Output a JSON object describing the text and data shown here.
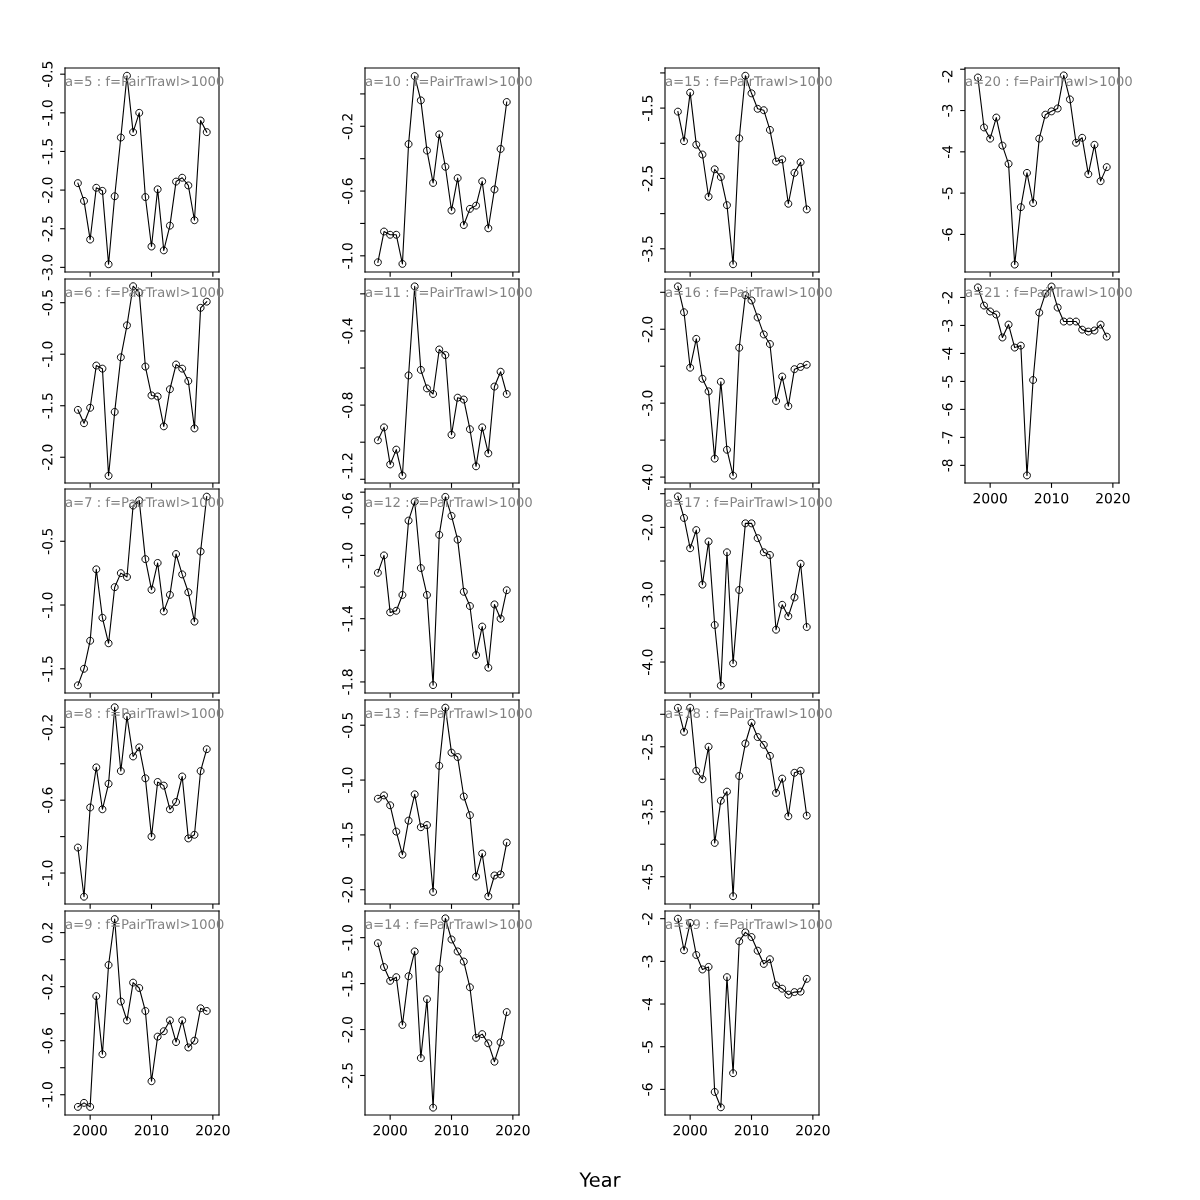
{
  "chart_data": [
    {
      "type": "line",
      "title": "a=5 : f=PairTrawl>1000",
      "marker": "circle",
      "line_style": "solid",
      "grid": false,
      "legend": false,
      "tick_labels": "y",
      "x": [
        1998,
        1999,
        2000,
        2001,
        2002,
        2003,
        2004,
        2005,
        2006,
        2007,
        2008,
        2009,
        2010,
        2011,
        2012,
        2013,
        2014,
        2015,
        2016,
        2017,
        2018,
        2019
      ],
      "values": [
        -1.91,
        -2.14,
        -2.64,
        -1.97,
        -2.01,
        -2.96,
        -2.08,
        -1.32,
        -0.52,
        -1.25,
        -1.0,
        -2.09,
        -2.73,
        -1.99,
        -2.78,
        -2.46,
        -1.89,
        -1.84,
        -1.94,
        -2.39,
        -1.1,
        -1.25
      ],
      "color": "#000000",
      "xlim": [
        1995.9,
        2021.0
      ],
      "xticks": [
        2000,
        2010,
        2020
      ],
      "ylim": [
        -3.06,
        -0.42
      ],
      "yticks": [
        {
          "value": -3.0,
          "label": "-3.0"
        },
        -2.5,
        {
          "value": -2.0,
          "label": "-2.0"
        },
        -1.5,
        {
          "value": -1.0,
          "label": "-1.0"
        },
        -0.5
      ]
    },
    {
      "type": "line",
      "title": "a=6 : f=PairTrawl>1000",
      "marker": "circle",
      "line_style": "solid",
      "grid": false,
      "legend": false,
      "tick_labels": "y",
      "x": [
        1998,
        1999,
        2000,
        2001,
        2002,
        2003,
        2004,
        2005,
        2006,
        2007,
        2008,
        2009,
        2010,
        2011,
        2012,
        2013,
        2014,
        2015,
        2016,
        2017,
        2018,
        2019
      ],
      "values": [
        -1.54,
        -1.67,
        -1.52,
        -1.11,
        -1.14,
        -2.18,
        -1.56,
        -1.03,
        -0.72,
        -0.34,
        -0.4,
        -1.12,
        -1.4,
        -1.41,
        -1.7,
        -1.34,
        -1.1,
        -1.14,
        -1.26,
        -1.72,
        -0.55,
        -0.49
      ],
      "color": "#000000",
      "xlim": [
        1995.9,
        2021.0
      ],
      "xticks": [
        2000,
        2010,
        2020
      ],
      "ylim": [
        -2.25,
        -0.27
      ],
      "yticks": [
        {
          "value": -2.0,
          "label": "-2.0"
        },
        -1.5,
        {
          "value": -1.0,
          "label": "-1.0"
        },
        -0.5
      ]
    },
    {
      "type": "line",
      "title": "a=7 : f=PairTrawl>1000",
      "marker": "circle",
      "line_style": "solid",
      "grid": false,
      "legend": false,
      "tick_labels": "y",
      "x": [
        1998,
        1999,
        2000,
        2001,
        2002,
        2003,
        2004,
        2005,
        2006,
        2007,
        2008,
        2009,
        2010,
        2011,
        2012,
        2013,
        2014,
        2015,
        2016,
        2017,
        2018,
        2019
      ],
      "values": [
        -1.63,
        -1.5,
        -1.28,
        -0.72,
        -1.1,
        -1.3,
        -0.86,
        -0.75,
        -0.78,
        -0.22,
        -0.18,
        -0.64,
        -0.88,
        -0.67,
        -1.05,
        -0.92,
        -0.6,
        -0.76,
        -0.9,
        -1.13,
        -0.58,
        -0.15
      ],
      "color": "#000000",
      "xlim": [
        1995.9,
        2021.0
      ],
      "xticks": [
        2000,
        2010,
        2020
      ],
      "ylim": [
        -1.69,
        -0.09
      ],
      "yticks": [
        -1.5,
        {
          "value": -1.0,
          "label": "-1.0"
        },
        -0.5
      ]
    },
    {
      "type": "line",
      "title": "a=8 : f=PairTrawl>1000",
      "marker": "circle",
      "line_style": "solid",
      "grid": false,
      "legend": false,
      "tick_labels": "y",
      "x": [
        1998,
        1999,
        2000,
        2001,
        2002,
        2003,
        2004,
        2005,
        2006,
        2007,
        2008,
        2009,
        2010,
        2011,
        2012,
        2013,
        2014,
        2015,
        2016,
        2017,
        2018,
        2019
      ],
      "values": [
        -0.86,
        -1.13,
        -0.64,
        -0.42,
        -0.65,
        -0.51,
        -0.09,
        -0.44,
        -0.14,
        -0.36,
        -0.31,
        -0.48,
        -0.8,
        -0.5,
        -0.52,
        -0.65,
        -0.61,
        -0.47,
        -0.81,
        -0.79,
        -0.44,
        -0.32
      ],
      "color": "#000000",
      "xlim": [
        1995.9,
        2021.0
      ],
      "xticks": [
        2000,
        2010,
        2020
      ],
      "ylim": [
        -1.17,
        -0.05
      ],
      "yticks": [
        {
          "value": -1.0,
          "label": "-1.0"
        },
        {
          "value": -0.8,
          "label": null
        },
        -0.6,
        {
          "value": -0.4,
          "label": null
        },
        -0.2
      ]
    },
    {
      "type": "line",
      "title": "a=9 : f=PairTrawl>1000",
      "marker": "circle",
      "line_style": "solid",
      "grid": false,
      "legend": false,
      "x": [
        1998,
        1999,
        2000,
        2001,
        2002,
        2003,
        2004,
        2005,
        2006,
        2007,
        2008,
        2009,
        2010,
        2011,
        2012,
        2013,
        2014,
        2015,
        2016,
        2017,
        2018,
        2019
      ],
      "values": [
        -1.09,
        -1.06,
        -1.09,
        -0.27,
        -0.7,
        -0.04,
        0.3,
        -0.31,
        -0.45,
        -0.17,
        -0.21,
        -0.38,
        -0.9,
        -0.57,
        -0.53,
        -0.45,
        -0.61,
        -0.45,
        -0.65,
        -0.6,
        -0.36,
        -0.38
      ],
      "color": "#000000",
      "xlim": [
        1995.9,
        2021.0
      ],
      "xticks": [
        2000,
        2010,
        2020
      ],
      "ylim": [
        -1.15,
        0.36
      ],
      "yticks": [
        {
          "value": -1.0,
          "label": "-1.0"
        },
        {
          "value": -0.8,
          "label": null
        },
        -0.6,
        {
          "value": -0.4,
          "label": null
        },
        -0.2,
        {
          "value": 0.0,
          "label": null
        },
        0.2
      ]
    },
    {
      "type": "line",
      "title": "a=10 : f=PairTrawl>1000",
      "marker": "circle",
      "line_style": "solid",
      "grid": false,
      "legend": false,
      "tick_labels": "y",
      "x": [
        1998,
        1999,
        2000,
        2001,
        2002,
        2003,
        2004,
        2005,
        2006,
        2007,
        2008,
        2009,
        2010,
        2011,
        2012,
        2013,
        2014,
        2015,
        2016,
        2017,
        2018,
        2019
      ],
      "values": [
        -1.04,
        -0.85,
        -0.87,
        -0.87,
        -1.05,
        -0.31,
        0.11,
        -0.04,
        -0.35,
        -0.55,
        -0.25,
        -0.45,
        -0.72,
        -0.52,
        -0.81,
        -0.71,
        -0.69,
        -0.54,
        -0.83,
        -0.59,
        -0.34,
        -0.05
      ],
      "color": "#000000",
      "xlim": [
        1995.9,
        2021.0
      ],
      "xticks": [
        2000,
        2010,
        2020
      ],
      "ylim": [
        -1.1,
        0.16
      ],
      "yticks": [
        {
          "value": -1.0,
          "label": "-1.0"
        },
        {
          "value": -0.8,
          "label": null
        },
        -0.6,
        {
          "value": -0.4,
          "label": null
        },
        -0.2,
        {
          "value": 0.0,
          "label": null
        }
      ]
    },
    {
      "type": "line",
      "title": "a=11 : f=PairTrawl>1000",
      "marker": "circle",
      "line_style": "solid",
      "grid": false,
      "legend": false,
      "tick_labels": "y",
      "x": [
        1998,
        1999,
        2000,
        2001,
        2002,
        2003,
        2004,
        2005,
        2006,
        2007,
        2008,
        2009,
        2010,
        2011,
        2012,
        2013,
        2014,
        2015,
        2016,
        2017,
        2018,
        2019
      ],
      "values": [
        -0.99,
        -0.92,
        -1.12,
        -1.04,
        -1.18,
        -0.64,
        -0.16,
        -0.61,
        -0.71,
        -0.74,
        -0.5,
        -0.53,
        -0.96,
        -0.76,
        -0.77,
        -0.93,
        -1.13,
        -0.92,
        -1.06,
        -0.7,
        -0.62,
        -0.74
      ],
      "color": "#000000",
      "xlim": [
        1995.9,
        2021.0
      ],
      "xticks": [
        2000,
        2010,
        2020
      ],
      "ylim": [
        -1.22,
        -0.12
      ],
      "yticks": [
        -1.2,
        {
          "value": -1.0,
          "label": null
        },
        -0.8,
        {
          "value": -0.6,
          "label": null
        },
        -0.4,
        {
          "value": -0.2,
          "label": null
        }
      ]
    },
    {
      "type": "line",
      "title": "a=12 : f=PairTrawl>1000",
      "marker": "circle",
      "line_style": "solid",
      "grid": false,
      "legend": false,
      "tick_labels": "y",
      "x": [
        1998,
        1999,
        2000,
        2001,
        2002,
        2003,
        2004,
        2005,
        2006,
        2007,
        2008,
        2009,
        2010,
        2011,
        2012,
        2013,
        2014,
        2015,
        2016,
        2017,
        2018,
        2019
      ],
      "values": [
        -1.11,
        -1.0,
        -1.36,
        -1.35,
        -1.25,
        -0.78,
        -0.66,
        -1.08,
        -1.25,
        -1.82,
        -0.87,
        -0.63,
        -0.75,
        -0.9,
        -1.23,
        -1.32,
        -1.63,
        -1.45,
        -1.71,
        -1.31,
        -1.4,
        -1.22
      ],
      "color": "#000000",
      "xlim": [
        1995.9,
        2021.0
      ],
      "xticks": [
        2000,
        2010,
        2020
      ],
      "ylim": [
        -1.87,
        -0.58
      ],
      "yticks": [
        -1.8,
        {
          "value": -1.6,
          "label": null
        },
        -1.4,
        {
          "value": -1.2,
          "label": null
        },
        {
          "value": -1.0,
          "label": "-1.0"
        },
        {
          "value": -0.8,
          "label": null
        },
        -0.6
      ]
    },
    {
      "type": "line",
      "title": "a=13 : f=PairTrawl>1000",
      "marker": "circle",
      "line_style": "solid",
      "grid": false,
      "legend": false,
      "tick_labels": "y",
      "x": [
        1998,
        1999,
        2000,
        2001,
        2002,
        2003,
        2004,
        2005,
        2006,
        2007,
        2008,
        2009,
        2010,
        2011,
        2012,
        2013,
        2014,
        2015,
        2016,
        2017,
        2018,
        2019
      ],
      "values": [
        -1.17,
        -1.14,
        -1.23,
        -1.47,
        -1.68,
        -1.37,
        -1.13,
        -1.43,
        -1.41,
        -2.02,
        -0.87,
        -0.34,
        -0.75,
        -0.79,
        -1.15,
        -1.32,
        -1.88,
        -1.67,
        -2.06,
        -1.87,
        -1.86,
        -1.57
      ],
      "color": "#000000",
      "xlim": [
        1995.9,
        2021.0
      ],
      "xticks": [
        2000,
        2010,
        2020
      ],
      "ylim": [
        -2.13,
        -0.27
      ],
      "yticks": [
        {
          "value": -2.0,
          "label": "-2.0"
        },
        -1.5,
        {
          "value": -1.0,
          "label": "-1.0"
        },
        -0.5
      ]
    },
    {
      "type": "line",
      "title": "a=14 : f=PairTrawl>1000",
      "xlabel": "Year",
      "marker": "circle",
      "line_style": "solid",
      "grid": false,
      "legend": false,
      "x": [
        1998,
        1999,
        2000,
        2001,
        2002,
        2003,
        2004,
        2005,
        2006,
        2007,
        2008,
        2009,
        2010,
        2011,
        2012,
        2013,
        2014,
        2015,
        2016,
        2017,
        2018,
        2019
      ],
      "values": [
        -1.06,
        -1.32,
        -1.47,
        -1.43,
        -1.95,
        -1.42,
        -1.15,
        -2.31,
        -1.67,
        -2.85,
        -1.34,
        -0.79,
        -1.02,
        -1.15,
        -1.26,
        -1.54,
        -2.09,
        -2.05,
        -2.15,
        -2.35,
        -2.14,
        -1.81
      ],
      "color": "#000000",
      "xlim": [
        1995.9,
        2021.0
      ],
      "xticks": [
        2000,
        2010,
        2020
      ],
      "ylim": [
        -2.93,
        -0.71
      ],
      "yticks": [
        -2.5,
        {
          "value": -2.0,
          "label": "-2.0"
        },
        -1.5,
        {
          "value": -1.0,
          "label": "-1.0"
        }
      ]
    },
    {
      "type": "line",
      "title": "a=15 : f=PairTrawl>1000",
      "marker": "circle",
      "line_style": "solid",
      "grid": false,
      "legend": false,
      "tick_labels": "y",
      "x": [
        1998,
        1999,
        2000,
        2001,
        2002,
        2003,
        2004,
        2005,
        2006,
        2007,
        2008,
        2009,
        2010,
        2011,
        2012,
        2013,
        2014,
        2015,
        2016,
        2017,
        2018,
        2019
      ],
      "values": [
        -1.55,
        -1.97,
        -1.28,
        -2.02,
        -2.16,
        -2.76,
        -2.37,
        -2.48,
        -2.88,
        -3.72,
        -1.93,
        -1.04,
        -1.29,
        -1.51,
        -1.53,
        -1.81,
        -2.26,
        -2.23,
        -2.86,
        -2.42,
        -2.27,
        -2.94
      ],
      "color": "#000000",
      "xlim": [
        1995.9,
        2021.0
      ],
      "xticks": [
        2000,
        2010,
        2020
      ],
      "ylim": [
        -3.83,
        -0.93
      ],
      "yticks": [
        -3.5,
        {
          "value": -3.0,
          "label": null
        },
        -2.5,
        {
          "value": -2.0,
          "label": null
        },
        -1.5,
        {
          "value": -1.0,
          "label": null
        }
      ]
    },
    {
      "type": "line",
      "title": "a=16 : f=PairTrawl>1000",
      "marker": "circle",
      "line_style": "solid",
      "grid": false,
      "legend": false,
      "tick_labels": "y",
      "x": [
        1998,
        1999,
        2000,
        2001,
        2002,
        2003,
        2004,
        2005,
        2006,
        2007,
        2008,
        2009,
        2010,
        2011,
        2012,
        2013,
        2014,
        2015,
        2016,
        2017,
        2018,
        2019
      ],
      "values": [
        -1.42,
        -1.77,
        -2.52,
        -2.13,
        -2.67,
        -2.84,
        -3.75,
        -2.71,
        -3.63,
        -3.98,
        -2.25,
        -1.54,
        -1.61,
        -1.84,
        -2.07,
        -2.2,
        -2.97,
        -2.64,
        -3.04,
        -2.54,
        -2.51,
        -2.48
      ],
      "color": "#000000",
      "xlim": [
        1995.9,
        2021.0
      ],
      "xticks": [
        2000,
        2010,
        2020
      ],
      "ylim": [
        -4.08,
        -1.32
      ],
      "yticks": [
        {
          "value": -4.0,
          "label": "-4.0"
        },
        {
          "value": -3.5,
          "label": null
        },
        {
          "value": -3.0,
          "label": "-3.0"
        },
        {
          "value": -2.5,
          "label": null
        },
        {
          "value": -2.0,
          "label": "-2.0"
        },
        {
          "value": -1.5,
          "label": null
        }
      ]
    },
    {
      "type": "line",
      "title": "a=17 : f=PairTrawl>1000",
      "marker": "circle",
      "line_style": "solid",
      "grid": false,
      "legend": false,
      "tick_labels": "y",
      "x": [
        1998,
        1999,
        2000,
        2001,
        2002,
        2003,
        2004,
        2005,
        2006,
        2007,
        2008,
        2009,
        2010,
        2011,
        2012,
        2013,
        2014,
        2015,
        2016,
        2017,
        2018,
        2019
      ],
      "values": [
        -1.54,
        -1.86,
        -2.31,
        -2.04,
        -2.85,
        -2.21,
        -3.45,
        -4.35,
        -2.37,
        -4.02,
        -2.93,
        -1.94,
        -1.94,
        -2.16,
        -2.37,
        -2.41,
        -3.52,
        -3.15,
        -3.32,
        -3.04,
        -2.54,
        -3.48
      ],
      "color": "#000000",
      "xlim": [
        1995.9,
        2021.0
      ],
      "xticks": [
        2000,
        2010,
        2020
      ],
      "ylim": [
        -4.46,
        -1.43
      ],
      "yticks": [
        {
          "value": -4.0,
          "label": "-4.0"
        },
        {
          "value": -3.5,
          "label": null
        },
        {
          "value": -3.0,
          "label": "-3.0"
        },
        {
          "value": -2.5,
          "label": null
        },
        {
          "value": -2.0,
          "label": "-2.0"
        },
        {
          "value": -1.5,
          "label": null
        }
      ]
    },
    {
      "type": "line",
      "title": "a=18 : f=PairTrawl>1000",
      "marker": "circle",
      "line_style": "solid",
      "grid": false,
      "legend": false,
      "tick_labels": "y",
      "x": [
        1998,
        1999,
        2000,
        2001,
        2002,
        2003,
        2004,
        2005,
        2006,
        2007,
        2008,
        2009,
        2010,
        2011,
        2012,
        2013,
        2014,
        2015,
        2016,
        2017,
        2018,
        2019
      ],
      "values": [
        -1.9,
        -2.27,
        -1.9,
        -2.87,
        -3.0,
        -2.5,
        -3.98,
        -3.33,
        -3.19,
        -4.8,
        -2.95,
        -2.45,
        -2.13,
        -2.35,
        -2.47,
        -2.64,
        -3.21,
        -2.99,
        -3.57,
        -2.9,
        -2.87,
        -3.56
      ],
      "color": "#000000",
      "xlim": [
        1995.9,
        2021.0
      ],
      "xticks": [
        2000,
        2010,
        2020
      ],
      "ylim": [
        -4.92,
        -1.78
      ],
      "yticks": [
        -4.5,
        {
          "value": -4.0,
          "label": null
        },
        -3.5,
        {
          "value": -3.0,
          "label": null
        },
        -2.5,
        {
          "value": -2.0,
          "label": null
        }
      ]
    },
    {
      "type": "line",
      "title": "a=19 : f=PairTrawl>1000",
      "marker": "circle",
      "line_style": "solid",
      "grid": false,
      "legend": false,
      "x": [
        1998,
        1999,
        2000,
        2001,
        2002,
        2003,
        2004,
        2005,
        2006,
        2007,
        2008,
        2009,
        2010,
        2011,
        2012,
        2013,
        2014,
        2015,
        2016,
        2017,
        2018,
        2019
      ],
      "values": [
        -2.0,
        -2.74,
        -2.1,
        -2.85,
        -3.19,
        -3.13,
        -6.06,
        -6.42,
        -3.37,
        -5.62,
        -2.53,
        -2.32,
        -2.43,
        -2.75,
        -3.06,
        -2.95,
        -3.56,
        -3.64,
        -3.78,
        -3.72,
        -3.71,
        -3.41
      ],
      "color": "#000000",
      "xlim": [
        1995.9,
        2021.0
      ],
      "xticks": [
        2000,
        2010,
        2020
      ],
      "ylim": [
        -6.6,
        -1.82
      ],
      "yticks": [
        -6,
        -5,
        -4,
        -3,
        -2
      ]
    },
    {
      "type": "line",
      "title": "a=20 : f=PairTrawl>1000",
      "marker": "circle",
      "line_style": "solid",
      "grid": false,
      "legend": false,
      "tick_labels": "y",
      "x": [
        1998,
        1999,
        2000,
        2001,
        2002,
        2003,
        2004,
        2005,
        2006,
        2007,
        2008,
        2009,
        2010,
        2011,
        2012,
        2013,
        2014,
        2015,
        2016,
        2017,
        2018,
        2019
      ],
      "values": [
        -2.2,
        -3.41,
        -3.68,
        -3.17,
        -3.85,
        -4.29,
        -6.73,
        -5.34,
        -4.51,
        -5.24,
        -3.68,
        -3.1,
        -3.02,
        -2.95,
        -2.15,
        -2.73,
        -3.78,
        -3.66,
        -4.54,
        -3.83,
        -4.71,
        -4.37
      ],
      "color": "#000000",
      "xlim": [
        1995.9,
        2021.0
      ],
      "xticks": [
        2000,
        2010,
        2020
      ],
      "ylim": [
        -6.91,
        -1.97
      ],
      "yticks": [
        -6,
        -5,
        -4,
        -3,
        -2
      ]
    },
    {
      "type": "line",
      "title": "a=21 : f=PairTrawl>1000",
      "marker": "circle",
      "line_style": "solid",
      "grid": false,
      "legend": false,
      "x": [
        1998,
        1999,
        2000,
        2001,
        2002,
        2003,
        2004,
        2005,
        2006,
        2007,
        2008,
        2009,
        2010,
        2011,
        2012,
        2013,
        2014,
        2015,
        2016,
        2017,
        2018,
        2019
      ],
      "values": [
        -1.64,
        -2.29,
        -2.5,
        -2.61,
        -3.43,
        -2.97,
        -3.79,
        -3.72,
        -8.36,
        -4.95,
        -2.54,
        -1.86,
        -1.61,
        -2.36,
        -2.86,
        -2.86,
        -2.86,
        -3.15,
        -3.22,
        -3.18,
        -2.97,
        -3.4
      ],
      "color": "#000000",
      "xlim": [
        1995.9,
        2021.0
      ],
      "xticks": [
        2000,
        2010,
        2020
      ],
      "ylim": [
        -8.63,
        -1.34
      ],
      "yticks": [
        -8,
        -7,
        -6,
        -5,
        -4,
        -3,
        -2
      ]
    }
  ]
}
